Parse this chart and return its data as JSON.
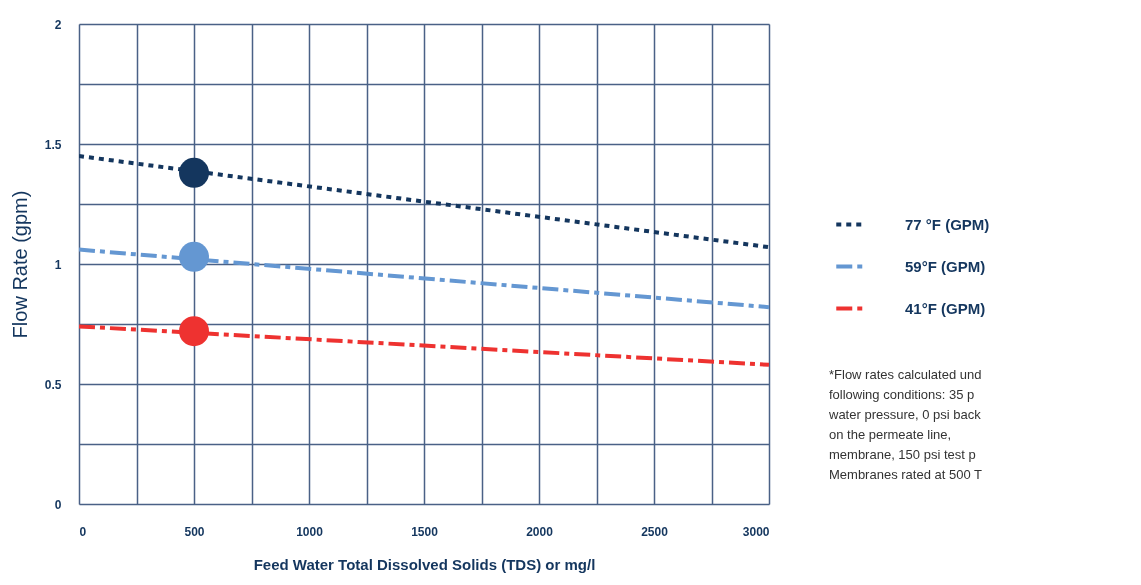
{
  "chart_data": {
    "type": "line",
    "xlabel": "Feed Water Total Dissolved Solids (TDS) or mg/l",
    "ylabel": "Flow Rate (gpm)",
    "xlim": [
      0,
      3000
    ],
    "ylim": [
      0,
      2
    ],
    "xticks": [
      0,
      {
        "value": 250,
        "label": null
      },
      500,
      {
        "value": 750,
        "label": null
      },
      1000,
      {
        "value": 1250,
        "label": null
      },
      1500,
      {
        "value": 1750,
        "label": null
      },
      2000,
      {
        "value": 2250,
        "label": null
      },
      2500,
      {
        "value": 2750,
        "label": null
      },
      3000
    ],
    "yticks": [
      0,
      {
        "value": 0.25,
        "label": null
      },
      0.5,
      {
        "value": 0.75,
        "label": null
      },
      1,
      {
        "value": 1.25,
        "label": null
      },
      1.5,
      {
        "value": 1.75,
        "label": null
      },
      2
    ],
    "grid": true,
    "legend": "right",
    "series": [
      {
        "name": "77 °F (GPM)",
        "color": "#14365e",
        "line_style": "dotted",
        "x": [
          0,
          3000
        ],
        "values": [
          1.45,
          1.07
        ]
      },
      {
        "name": "59°F (GPM)",
        "color": "#6497d2",
        "line_style": "dashed",
        "x": [
          0,
          3000
        ],
        "values": [
          1.06,
          0.82
        ]
      },
      {
        "name": "41°F (GPM)",
        "color": "#ee3230",
        "line_style": "dashed",
        "x": [
          0,
          3000
        ],
        "values": [
          0.74,
          0.58
        ]
      },
      {
        "type": "scatter",
        "marker": "circle",
        "x": [
          500,
          500,
          500
        ],
        "values": [
          1.38,
          1.03,
          0.72
        ],
        "colors": [
          "#14365e",
          "#6497d2",
          "#ee3230"
        ]
      }
    ],
    "annotations": [
      "*Flow rates calculated und\nfollowing conditions: 35 p\nwater pressure, 0 psi back\non the permeate line,\nmembrane, 150 psi test p\nMembranes rated at 500 T"
    ]
  }
}
